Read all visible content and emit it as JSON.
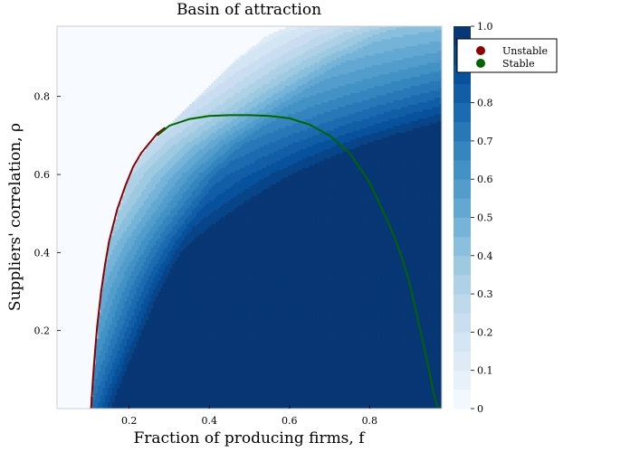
{
  "chart_data": {
    "type": "contour",
    "title": "Basin of attraction",
    "xlabel": "Fraction of producing firms, f",
    "ylabel": "Suppliers' correlation, ρ",
    "xlim": [
      0.02,
      0.98
    ],
    "ylim": [
      0.0,
      0.98
    ],
    "x_ticks": [
      0.2,
      0.4,
      0.6,
      0.8
    ],
    "y_ticks": [
      0.2,
      0.4,
      0.6,
      0.8
    ],
    "x_tick_labels": [
      "0.2",
      "0.4",
      "0.6",
      "0.8"
    ],
    "y_tick_labels": [
      "0.2",
      "0.4",
      "0.6",
      "0.8"
    ],
    "colorbar": {
      "colormap": "Blues",
      "range": [
        0,
        1
      ],
      "levels": [
        0,
        0.05,
        0.1,
        0.15,
        0.2,
        0.25,
        0.3,
        0.35,
        0.4,
        0.45,
        0.5,
        0.55,
        0.6,
        0.65,
        0.7,
        0.75,
        0.8,
        0.85,
        0.9,
        0.95,
        1.0
      ],
      "tick_values": [
        0,
        0.1,
        0.2,
        0.3,
        0.4,
        0.5,
        0.6,
        0.7,
        0.8,
        0.9,
        1.0
      ],
      "tick_labels": [
        "0",
        "0.1",
        "0.2",
        "0.3",
        "0.4",
        "0.5",
        "0.6",
        "0.7",
        "0.8",
        "0.9",
        "1.0"
      ]
    },
    "legend_position": "top-right",
    "series": [
      {
        "name": "Unstable",
        "color": "#8b0000",
        "x": [
          0.105,
          0.11,
          0.115,
          0.12,
          0.13,
          0.14,
          0.15,
          0.17,
          0.19,
          0.21,
          0.23,
          0.25,
          0.27,
          0.29
        ],
        "y": [
          0.0,
          0.08,
          0.15,
          0.21,
          0.3,
          0.37,
          0.43,
          0.51,
          0.57,
          0.62,
          0.655,
          0.68,
          0.705,
          0.72
        ]
      },
      {
        "name": "Stable",
        "color": "#006400",
        "x": [
          0.27,
          0.3,
          0.35,
          0.4,
          0.45,
          0.5,
          0.55,
          0.6,
          0.65,
          0.7,
          0.75,
          0.8,
          0.85,
          0.88,
          0.9,
          0.92,
          0.94,
          0.96,
          0.97
        ],
        "y": [
          0.7,
          0.725,
          0.742,
          0.75,
          0.752,
          0.752,
          0.75,
          0.744,
          0.728,
          0.7,
          0.655,
          0.58,
          0.47,
          0.39,
          0.32,
          0.23,
          0.14,
          0.04,
          0.0
        ]
      }
    ],
    "contour_field": {
      "description_free": true,
      "valid_region_boundary": {
        "x": [
          0.105,
          0.11,
          0.13,
          0.15,
          0.2,
          0.25,
          0.29,
          0.35,
          0.4,
          0.45,
          0.5,
          0.55,
          0.6
        ],
        "y": [
          0.0,
          0.08,
          0.3,
          0.43,
          0.6,
          0.68,
          0.72,
          0.78,
          0.83,
          0.88,
          0.92,
          0.96,
          0.98
        ]
      }
    }
  }
}
